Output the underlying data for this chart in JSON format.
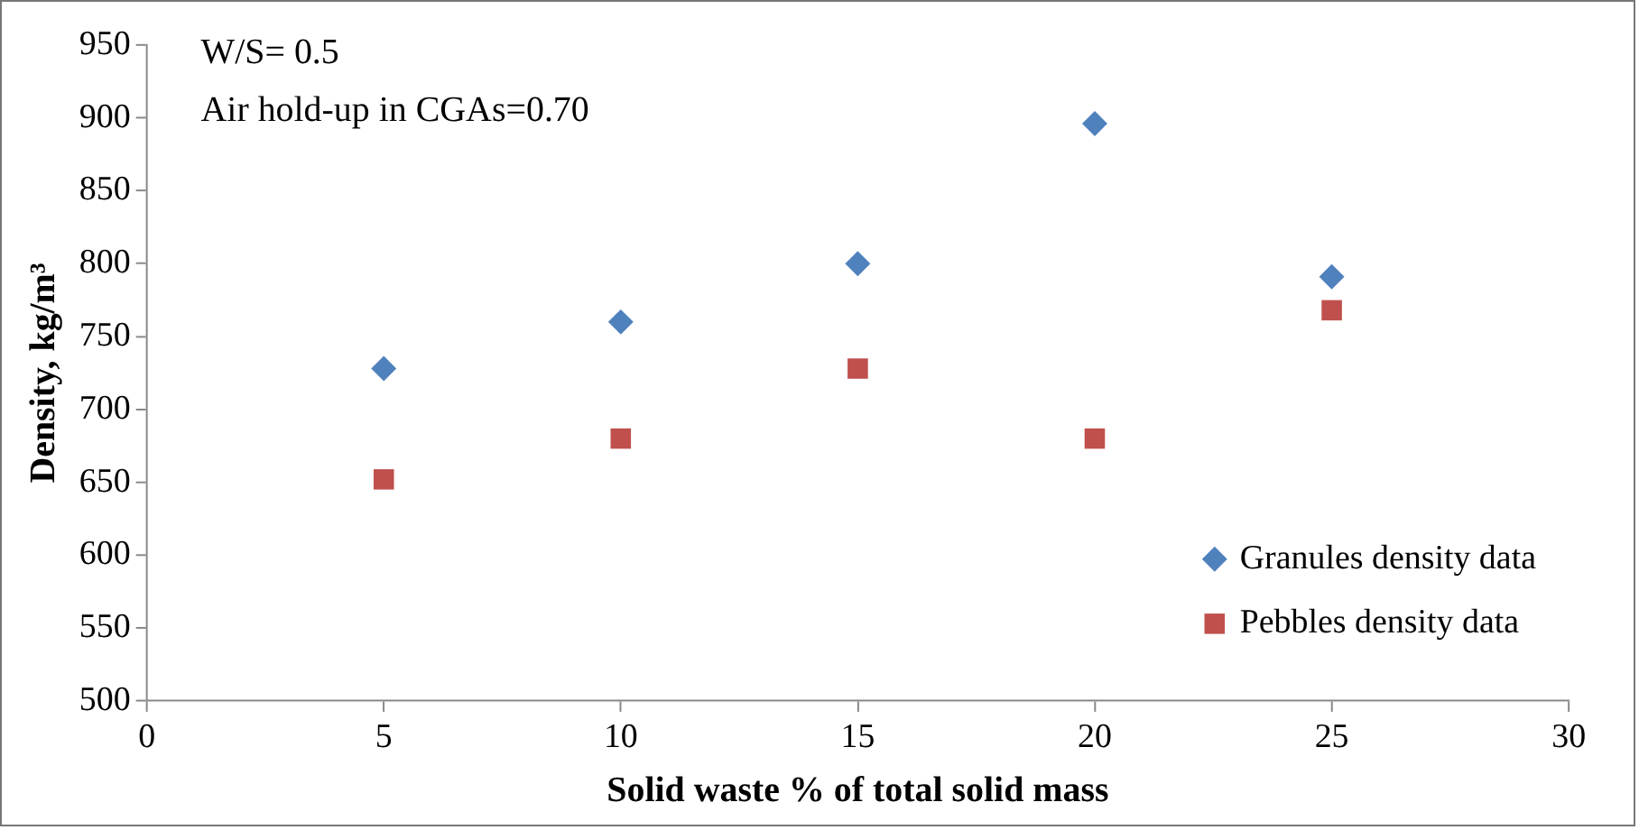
{
  "chart_data": {
    "type": "scatter",
    "xlabel": "Solid waste % of total solid mass",
    "ylabel": "Density, kg/m³",
    "x": [
      5,
      10,
      15,
      20,
      25
    ],
    "series": [
      {
        "name": "Granules density data",
        "color": "#4f81bd",
        "marker": "diamond",
        "values": [
          728,
          760,
          800,
          896,
          791
        ]
      },
      {
        "name": "Pebbles density data",
        "color": "#c0504d",
        "marker": "square",
        "values": [
          652,
          680,
          728,
          680,
          768
        ]
      }
    ],
    "xlim": [
      0,
      30
    ],
    "xticks": [
      0,
      5,
      10,
      15,
      20,
      25,
      30
    ],
    "ylim": [
      500,
      950
    ],
    "yticks": [
      500,
      550,
      600,
      650,
      700,
      750,
      800,
      850,
      900,
      950
    ],
    "grid": false,
    "legend": "bottom right",
    "annotations": [
      "W/S= 0.5",
      "Air hold-up in CGAs=0.70"
    ]
  }
}
